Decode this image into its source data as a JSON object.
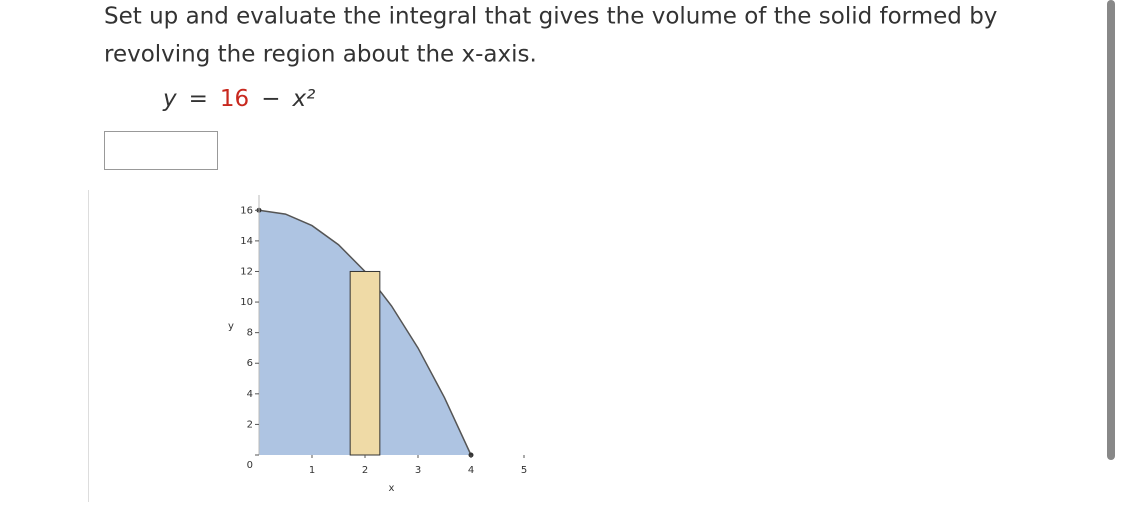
{
  "question": {
    "lines": [
      "Set up and evaluate the integral that gives the volume of the solid formed by",
      "revolving the region about the x-axis."
    ],
    "equation": {
      "lhs": "y",
      "eq": "=",
      "constant": "16",
      "minus": "−",
      "term": "x²"
    }
  },
  "chart_data": {
    "type": "area",
    "x": [
      0,
      0.5,
      1,
      1.5,
      2,
      2.5,
      3,
      3.5,
      4
    ],
    "values": [
      16,
      15.75,
      15,
      13.75,
      12,
      9.75,
      7,
      3.75,
      0
    ],
    "color": "#aec4e2",
    "rectangle": {
      "x": [
        1.72,
        2.28
      ],
      "height": 12,
      "color": "#efdaa6"
    },
    "x_label": "x",
    "y_label": "y",
    "xlim": [
      0,
      5
    ],
    "ylim": [
      0,
      17
    ],
    "xticks": [
      1,
      2,
      3,
      4,
      5
    ],
    "yticks": [
      0,
      2,
      4,
      6,
      8,
      10,
      12,
      14,
      16
    ]
  }
}
